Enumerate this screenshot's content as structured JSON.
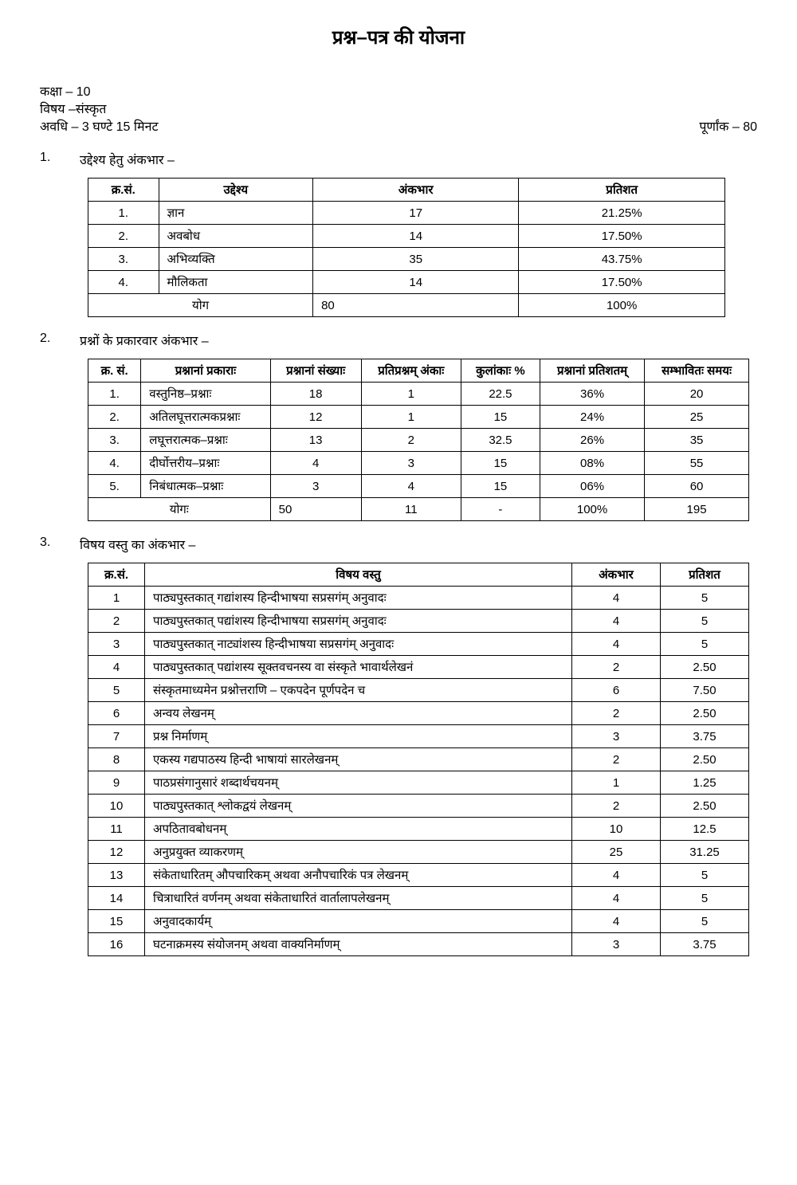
{
  "title": "प्रश्न–पत्र की योजना",
  "header": {
    "class_label": "कक्षा – 10",
    "subject_label": "विषय –संस्कृत",
    "duration_label": "अवधि – 3 घण्टे 15 मिनट",
    "max_marks_label": "पूर्णांक – 80"
  },
  "section1": {
    "num": "1.",
    "title": "उद्देश्य हेतु अंकभार –",
    "headers": [
      "क्र.सं.",
      "उद्देश्य",
      "अंकभार",
      "प्रतिशत"
    ],
    "rows": [
      [
        "1.",
        "ज्ञान",
        "17",
        "21.25%"
      ],
      [
        "2.",
        "अवबोध",
        "14",
        "17.50%"
      ],
      [
        "3.",
        "अभिव्यक्ति",
        "35",
        "43.75%"
      ],
      [
        "4.",
        "मौलिकता",
        "14",
        "17.50%"
      ]
    ],
    "total": [
      "योग",
      "80",
      "100%"
    ]
  },
  "section2": {
    "num": "2.",
    "title": "प्रश्नों के प्रकारवार अंकभार –",
    "headers": [
      "क्र.\nसं.",
      "प्रश्नानां प्रकाराः",
      "प्रश्नानां\nसंख्याः",
      "प्रतिप्रश्नम्\nअंकाः",
      "कुलांकाः %",
      "प्रश्नानां\nप्रतिशतम्",
      "सम्भावितः\nसमयः"
    ],
    "rows": [
      [
        "1.",
        "वस्तुनिष्ठ–प्रश्नाः",
        "18",
        "1",
        "22.5",
        "36%",
        "20"
      ],
      [
        "2.",
        "अतिलघूत्तरात्मकप्रश्नाः",
        "12",
        "1",
        "15",
        "24%",
        "25"
      ],
      [
        "3.",
        "लघूत्तरात्मक–प्रश्नाः",
        "13",
        "2",
        "32.5",
        "26%",
        "35"
      ],
      [
        "4.",
        "दीर्घोत्तरीय–प्रश्नाः",
        "4",
        "3",
        "15",
        "08%",
        "55"
      ],
      [
        "5.",
        "निबंधात्मक–प्रश्नाः",
        "3",
        "4",
        "15",
        "06%",
        "60"
      ]
    ],
    "total": [
      "योगः",
      "50",
      "11",
      "-",
      "100%",
      "195"
    ]
  },
  "section3": {
    "num": "3.",
    "title": "विषय वस्तु का अंकभार –",
    "headers": [
      "क्र.सं.",
      "विषय वस्तु",
      "अंकभार",
      "प्रतिशत"
    ],
    "rows": [
      [
        "1",
        "पाठ्यपुस्तकात् गद्यांशस्य हिन्दीभाषया सप्रसगंम् अनुवादः",
        "4",
        "5"
      ],
      [
        "2",
        "पाठ्यपुस्तकात् पद्यांशस्य हिन्दीभाषया सप्रसगंम् अनुवादः",
        "4",
        "5"
      ],
      [
        "3",
        "पाठ्यपुस्तकात् नाट्यांशस्य हिन्दीभाषया सप्रसगंम् अनुवादः",
        "4",
        "5"
      ],
      [
        "4",
        "पाठ्यपुस्तकात् पद्यांशस्य सूक्तवचनस्य वा संस्कृते भावार्थलेखनं",
        "2",
        "2.50"
      ],
      [
        "5",
        "संस्कृतमाध्यमेन प्रश्नोत्तराणि – एकपदेन पूर्णपदेन च",
        "6",
        "7.50"
      ],
      [
        "6",
        "अन्वय लेखनम्",
        "2",
        "2.50"
      ],
      [
        "7",
        "प्रश्न निर्माणम्",
        "3",
        "3.75"
      ],
      [
        "8",
        "एकस्य गद्यपाठस्य हिन्दी भाषायां सारलेखनम्",
        "2",
        "2.50"
      ],
      [
        "9",
        "पाठप्रसंगानुसारं शब्दार्थचयनम्",
        "1",
        "1.25"
      ],
      [
        "10",
        "पाठ्यपुस्तकात् श्लोकद्वयं लेखनम्",
        "2",
        "2.50"
      ],
      [
        "11",
        "अपठितावबोधनम्",
        "10",
        "12.5"
      ],
      [
        "12",
        "अनुप्रयुक्त व्याकरणम्",
        "25",
        "31.25"
      ],
      [
        "13",
        "संकेताधारितम् औपचारिकम् अथवा अनौपचारिकं पत्र लेखनम्",
        "4",
        "5"
      ],
      [
        "14",
        "चित्राधारितं वर्णनम् अथवा संकेताधारितं वार्तालापलेखनम्",
        "4",
        "5"
      ],
      [
        "15",
        "अनुवादकार्यम्",
        "4",
        "5"
      ],
      [
        "16",
        "घटनाक्रमस्य संयोजनम् अथवा वाक्यनिर्माणम्",
        "3",
        "3.75"
      ]
    ]
  }
}
